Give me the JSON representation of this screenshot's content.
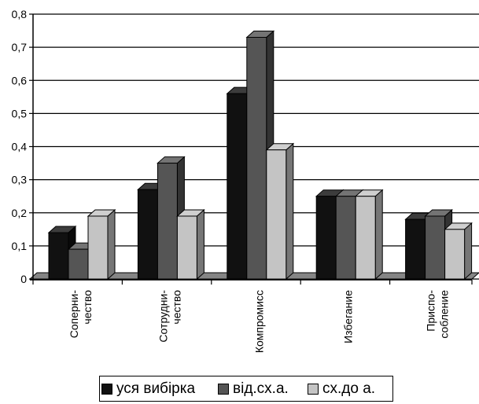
{
  "chart_data": {
    "type": "bar",
    "variant": "3d-clustered-column",
    "categories": [
      [
        "Соперни-",
        "чество"
      ],
      [
        "Сотрудни-",
        "чество"
      ],
      [
        "Компромисс"
      ],
      [
        "Избегание"
      ],
      [
        "Приспо-",
        "собление"
      ]
    ],
    "series": [
      {
        "name": "уся вибірка",
        "color": "#111111",
        "values": [
          0.14,
          0.27,
          0.56,
          0.25,
          0.18
        ]
      },
      {
        "name": "від.сх.а.",
        "color": "#555555",
        "values": [
          0.09,
          0.35,
          0.73,
          0.25,
          0.19
        ]
      },
      {
        "name": "сх.до а.",
        "color": "#c4c4c4",
        "values": [
          0.19,
          0.19,
          0.39,
          0.25,
          0.15
        ]
      }
    ],
    "ylim": [
      0,
      0.8
    ],
    "yticks": [
      0,
      0.1,
      0.2,
      0.3,
      0.4,
      0.5,
      0.6,
      0.7,
      0.8
    ],
    "ytick_labels": [
      "0",
      "0,1",
      "0,2",
      "0,3",
      "0,4",
      "0,5",
      "0,6",
      "0,7",
      "0,8"
    ],
    "grid": true,
    "legend_position": "bottom"
  }
}
